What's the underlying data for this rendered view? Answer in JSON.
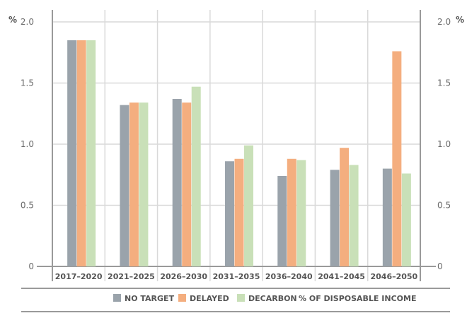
{
  "chart_data": {
    "type": "bar",
    "unit_left": "%",
    "unit_right": "%",
    "categories": [
      "2017–2020",
      "2021–2025",
      "2026–2030",
      "2031–2035",
      "2036–2040",
      "2041–2045",
      "2046–2050"
    ],
    "series": [
      {
        "name": "NO TARGET",
        "color": "#9aa3ab",
        "values": [
          1.85,
          1.32,
          1.37,
          0.86,
          0.74,
          0.79,
          0.8
        ]
      },
      {
        "name": "DELAYED",
        "color": "#f4ae7f",
        "values": [
          1.85,
          1.34,
          1.34,
          0.88,
          0.88,
          0.97,
          1.76
        ]
      },
      {
        "name": "DECARBON",
        "color": "#c9e0b8",
        "values": [
          1.85,
          1.34,
          1.47,
          0.99,
          0.87,
          0.83,
          0.76
        ]
      }
    ],
    "y_ticks": [
      "0",
      "0.5",
      "1.0",
      "1.5",
      "2.0"
    ],
    "ylim": [
      0,
      2.0
    ],
    "legend_note": "% OF DISPOSABLE INCOME",
    "grid": true,
    "legend_position": "bottom"
  }
}
